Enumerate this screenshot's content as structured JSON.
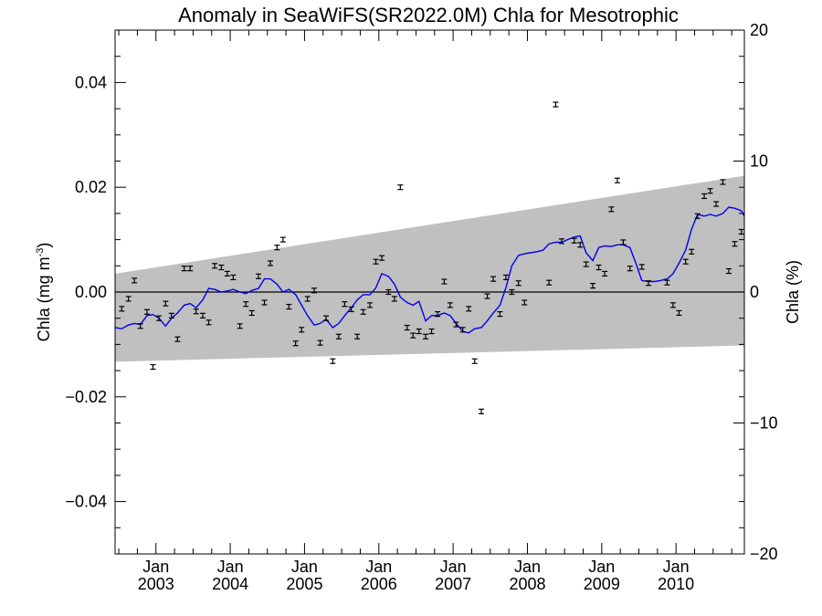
{
  "chart_data": {
    "type": "scatter",
    "title": "Anomaly in SeaWiFS(SR2022.0M) Chla for Mesotrophic",
    "ylabel_left": "Chla (mg m",
    "ylabel_left_sup": "-3",
    "ylabel_left_close": ")",
    "ylabel_right": "Chla (%)",
    "xlim": [
      2002.45,
      2010.92
    ],
    "ylim": [
      -0.05,
      0.05
    ],
    "ylim_right": [
      -20,
      20
    ],
    "left_ticks": [
      -0.04,
      -0.02,
      0.0,
      0.02,
      0.04
    ],
    "left_tick_labels": [
      "−0.04",
      "−0.02",
      "0.00",
      "0.02",
      "0.04"
    ],
    "right_ticks": [
      -20,
      -10,
      0,
      10,
      20
    ],
    "right_tick_labels": [
      "−20",
      "−10",
      "0",
      "10",
      "20"
    ],
    "x_ticks": [
      2003,
      2004,
      2005,
      2006,
      2007,
      2008,
      2009,
      2010
    ],
    "x_month_labels": [
      "Jan",
      "Jan",
      "Jan",
      "Jan",
      "Jan",
      "Jan",
      "Jan",
      "Jan"
    ],
    "x_year_labels": [
      "2003",
      "2004",
      "2005",
      "2006",
      "2007",
      "2008",
      "2009",
      "2010"
    ],
    "band": {
      "x": [
        2002.45,
        2010.92
      ],
      "upper": [
        0.0035,
        0.0222
      ],
      "lower": [
        -0.0133,
        -0.0102
      ]
    },
    "zero_line": 0,
    "colors": {
      "band": "#c0c0c0",
      "smooth_line": "#0000ee",
      "points": "#000000"
    },
    "points": {
      "name": "monthly anomaly",
      "x": [
        2002.54,
        2002.63,
        2002.71,
        2002.79,
        2002.88,
        2002.96,
        2003.04,
        2003.13,
        2003.21,
        2003.29,
        2003.38,
        2003.46,
        2003.54,
        2003.63,
        2003.71,
        2003.79,
        2003.88,
        2003.96,
        2004.04,
        2004.13,
        2004.21,
        2004.29,
        2004.38,
        2004.46,
        2004.54,
        2004.63,
        2004.71,
        2004.79,
        2004.88,
        2004.96,
        2005.04,
        2005.13,
        2005.21,
        2005.29,
        2005.38,
        2005.46,
        2005.54,
        2005.63,
        2005.71,
        2005.79,
        2005.88,
        2005.96,
        2006.04,
        2006.13,
        2006.21,
        2006.29,
        2006.38,
        2006.46,
        2006.54,
        2006.63,
        2006.71,
        2006.79,
        2006.88,
        2006.96,
        2007.04,
        2007.13,
        2007.21,
        2007.29,
        2007.38,
        2007.46,
        2007.54,
        2007.63,
        2007.71,
        2007.79,
        2007.88,
        2007.96,
        2008.29,
        2008.38,
        2008.46,
        2008.63,
        2008.71,
        2008.79,
        2008.88,
        2008.96,
        2009.04,
        2009.13,
        2009.21,
        2009.29,
        2009.38,
        2009.54,
        2009.63,
        2009.88,
        2009.96,
        2010.04,
        2010.13,
        2010.21,
        2010.29,
        2010.38,
        2010.46,
        2010.54,
        2010.63,
        2010.71,
        2010.79,
        2010.88
      ],
      "y": [
        -0.0032,
        -0.0013,
        0.0022,
        -0.0065,
        -0.0038,
        -0.0143,
        -0.005,
        -0.0022,
        -0.0045,
        -0.009,
        0.0045,
        0.0045,
        -0.0037,
        -0.0045,
        -0.0058,
        0.005,
        0.0047,
        0.0035,
        0.0028,
        -0.0065,
        -0.0023,
        -0.004,
        0.003,
        -0.002,
        0.0055,
        0.0085,
        0.01,
        -0.0028,
        -0.0098,
        -0.0072,
        -0.0013,
        0.0003,
        -0.0097,
        -0.005,
        -0.0132,
        -0.0085,
        -0.0023,
        -0.0033,
        -0.0085,
        -0.0038,
        -0.0025,
        0.0058,
        0.0065,
        0.0,
        -0.0013,
        0.02,
        -0.0068,
        -0.0083,
        -0.0075,
        -0.0085,
        -0.0075,
        -0.0042,
        0.002,
        -0.0025,
        -0.0062,
        -0.0072,
        -0.0032,
        -0.0132,
        -0.0228,
        -0.0008,
        0.0025,
        -0.0042,
        0.0028,
        0.0,
        0.0017,
        -0.002,
        0.0018,
        0.0358,
        0.0097,
        0.0098,
        0.009,
        0.0053,
        0.0012,
        0.0047,
        0.0035,
        0.0158,
        0.0213,
        0.0095,
        0.0045,
        0.0048,
        0.0017,
        0.0018,
        -0.0025,
        -0.004,
        0.0058,
        0.0077,
        0.0145,
        0.0183,
        0.0193,
        0.0168,
        0.021,
        0.004,
        0.0092,
        0.0115
      ]
    },
    "smooth": {
      "name": "running mean",
      "x": [
        2002.45,
        2002.54,
        2002.63,
        2002.71,
        2002.79,
        2002.88,
        2002.96,
        2003.04,
        2003.13,
        2003.21,
        2003.29,
        2003.38,
        2003.46,
        2003.54,
        2003.63,
        2003.71,
        2003.79,
        2003.88,
        2003.96,
        2004.04,
        2004.13,
        2004.21,
        2004.29,
        2004.38,
        2004.46,
        2004.54,
        2004.63,
        2004.71,
        2004.79,
        2004.88,
        2004.96,
        2005.04,
        2005.13,
        2005.21,
        2005.29,
        2005.38,
        2005.46,
        2005.54,
        2005.63,
        2005.71,
        2005.79,
        2005.88,
        2005.96,
        2006.04,
        2006.13,
        2006.21,
        2006.29,
        2006.38,
        2006.46,
        2006.54,
        2006.63,
        2006.71,
        2006.79,
        2006.88,
        2006.96,
        2007.04,
        2007.13,
        2007.21,
        2007.29,
        2007.38,
        2007.46,
        2007.54,
        2007.63,
        2007.71,
        2007.79,
        2007.88,
        2007.96,
        2008.04,
        2008.13,
        2008.21,
        2008.29,
        2008.38,
        2008.46,
        2008.54,
        2008.63,
        2008.71,
        2008.79,
        2008.88,
        2008.96,
        2009.04,
        2009.13,
        2009.21,
        2009.29,
        2009.38,
        2009.46,
        2009.54,
        2009.63,
        2009.71,
        2009.79,
        2009.88,
        2009.96,
        2010.04,
        2010.13,
        2010.21,
        2010.29,
        2010.38,
        2010.46,
        2010.54,
        2010.63,
        2010.71,
        2010.79,
        2010.88,
        2010.92
      ],
      "y": [
        -0.0068,
        -0.007,
        -0.0063,
        -0.006,
        -0.0062,
        -0.0045,
        -0.0043,
        -0.005,
        -0.0065,
        -0.005,
        -0.004,
        -0.0025,
        -0.0022,
        -0.003,
        -0.0015,
        0.0007,
        0.0005,
        0.0,
        0.0002,
        0.0005,
        0.0,
        -0.0003,
        0.0003,
        0.0007,
        0.0025,
        0.0025,
        0.0015,
        0.0,
        0.0005,
        -0.0005,
        -0.0025,
        -0.0045,
        -0.0063,
        -0.006,
        -0.0052,
        -0.0068,
        -0.006,
        -0.0045,
        -0.003,
        -0.0015,
        -0.0005,
        -0.0005,
        0.0008,
        0.0035,
        0.003,
        0.0015,
        -0.001,
        -0.002,
        -0.0025,
        -0.0018,
        -0.0055,
        -0.0045,
        -0.0045,
        -0.004,
        -0.0045,
        -0.006,
        -0.0075,
        -0.0078,
        -0.007,
        -0.0068,
        -0.0055,
        -0.004,
        -0.0025,
        0.0008,
        0.005,
        0.007,
        0.0073,
        0.0075,
        0.0077,
        0.008,
        0.0092,
        0.0095,
        0.0095,
        0.01,
        0.0105,
        0.0107,
        0.0075,
        0.006,
        0.0085,
        0.0088,
        0.0087,
        0.009,
        0.009,
        0.0085,
        0.0055,
        0.0022,
        0.002,
        0.002,
        0.0022,
        0.0025,
        0.0035,
        0.0055,
        0.008,
        0.012,
        0.0148,
        0.0145,
        0.0148,
        0.0145,
        0.015,
        0.0162,
        0.016,
        0.0155,
        0.0145
      ]
    }
  }
}
